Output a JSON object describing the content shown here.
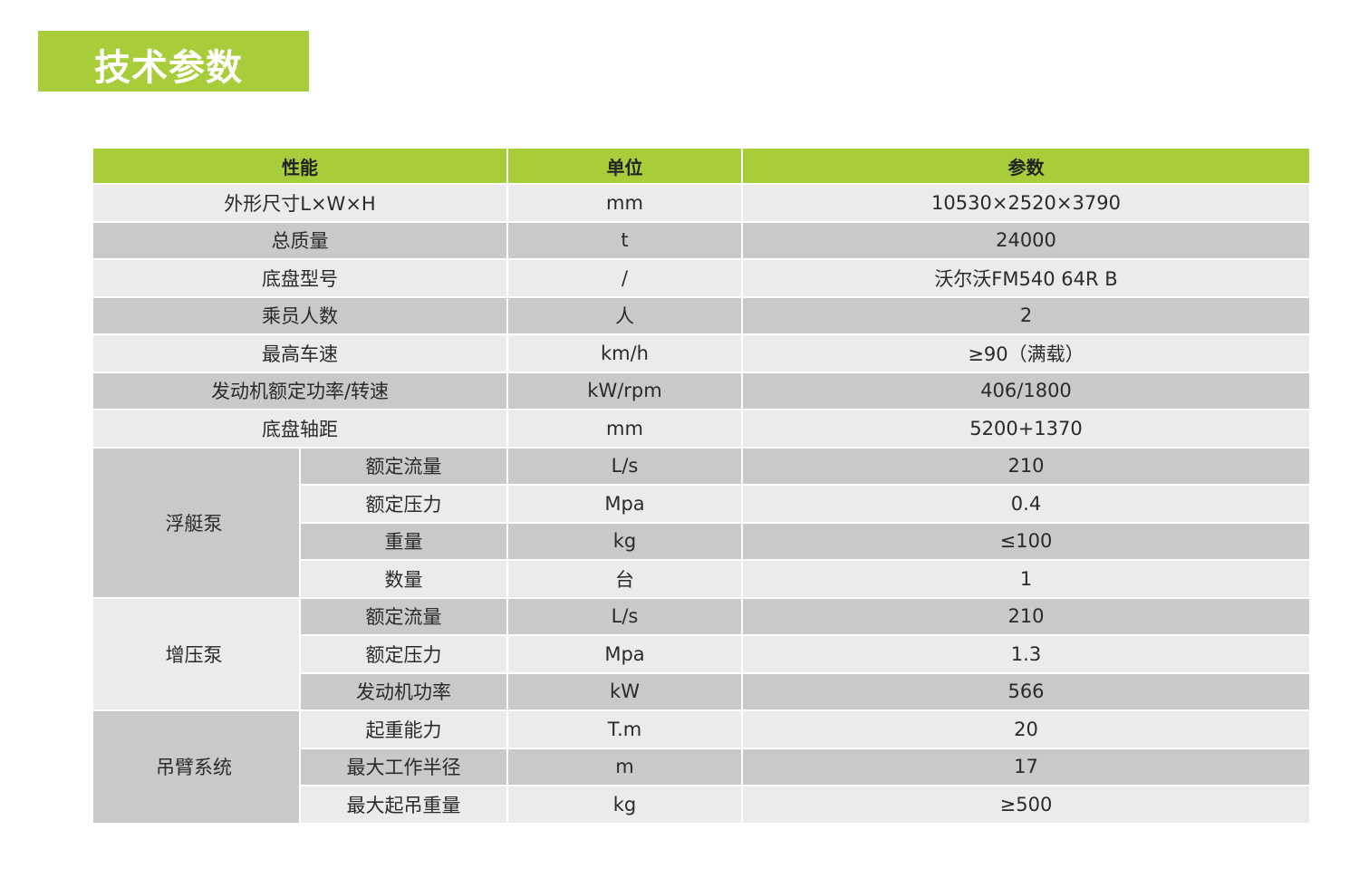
{
  "title": "技术参数",
  "colors": {
    "accent": "#a7cd3a",
    "row_light": "#ebebec",
    "row_gray": "#c8c9cb"
  },
  "table": {
    "headers": [
      "性能",
      "单位",
      "参数"
    ],
    "rows": [
      {
        "label": "外形尺寸L×W×H",
        "unit": "mm",
        "value": "10530×2520×3790"
      },
      {
        "label": "总质量",
        "unit": "t",
        "value": "24000"
      },
      {
        "label": "底盘型号",
        "unit": "/",
        "value": "沃尔沃FM540 64R B"
      },
      {
        "label": "乘员人数",
        "unit": "人",
        "value": "2"
      },
      {
        "label": "最高车速",
        "unit": "km/h",
        "value": "≥90（满载）"
      },
      {
        "label": "发动机额定功率/转速",
        "unit": "kW/rpm",
        "value": "406/1800"
      },
      {
        "label": "底盘轴距",
        "unit": "mm",
        "value": "5200+1370"
      }
    ],
    "groups": [
      {
        "name": "浮艇泵",
        "rows": [
          {
            "label": "额定流量",
            "unit": "L/s",
            "value": "210"
          },
          {
            "label": "额定压力",
            "unit": "Mpa",
            "value": "0.4"
          },
          {
            "label": "重量",
            "unit": "kg",
            "value": "≤100"
          },
          {
            "label": "数量",
            "unit": "台",
            "value": "1"
          }
        ]
      },
      {
        "name": "增压泵",
        "rows": [
          {
            "label": "额定流量",
            "unit": "L/s",
            "value": "210"
          },
          {
            "label": "额定压力",
            "unit": "Mpa",
            "value": "1.3"
          },
          {
            "label": "发动机功率",
            "unit": "kW",
            "value": "566"
          }
        ]
      },
      {
        "name": "吊臂系统",
        "rows": [
          {
            "label": "起重能力",
            "unit": "T.m",
            "value": "20"
          },
          {
            "label": "最大工作半径",
            "unit": "m",
            "value": "17"
          },
          {
            "label": "最大起吊重量",
            "unit": "kg",
            "value": "≥500"
          }
        ]
      }
    ]
  }
}
